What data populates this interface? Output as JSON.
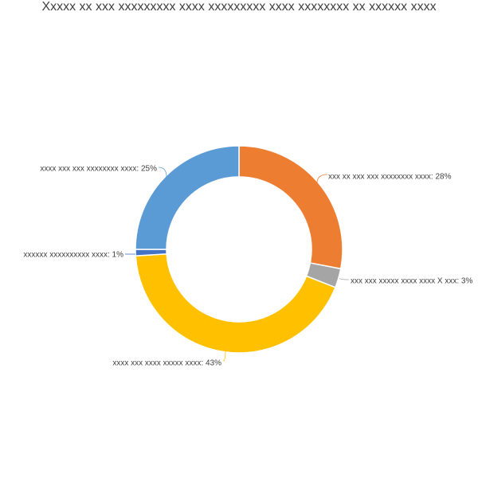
{
  "title": "Xxxxx xx xxx xxxxxxxxx xxxx xxxxxxxxx xxxx xxxxxxxx xx xxxxxx xxxx",
  "chart_data": {
    "type": "pie",
    "variant": "donut",
    "title": "Xxxxx xx xxx xxxxxxxxx xxxx xxxxxxxxx xxxx xxxxxxxx xx xxxxxx xxxx",
    "legend": "none",
    "slices": [
      {
        "label": "xxx xx xxx xxx xxxxxxxx xxxx",
        "value": 28,
        "display": "xxx xx xxx xxx xxxxxxxx xxxx: 28%",
        "color": "#ED7D31"
      },
      {
        "label": "xxx xxx xxxxx xxxx xxxx X xxx",
        "value": 3,
        "display": "xxx xxx xxxxx xxxx xxxx X xxx: 3%",
        "color": "#A5A5A5"
      },
      {
        "label": "xxxx xxx xxxx xxxxx xxxx",
        "value": 43,
        "display": "xxxx xxx xxxx xxxxx xxxx: 43%",
        "color": "#FFC000"
      },
      {
        "label": "xxxxxx xxxxxxxxxx xxxx",
        "value": 1,
        "display": "xxxxxx xxxxxxxxxx xxxx: 1%",
        "color": "#4472C4"
      },
      {
        "label": "xxxx xxx xxx xxxxxxxx xxxx",
        "value": 25,
        "display": "xxxx xxx xxx xxxxxxxx xxxx: 25%",
        "color": "#5B9BD5"
      }
    ]
  }
}
